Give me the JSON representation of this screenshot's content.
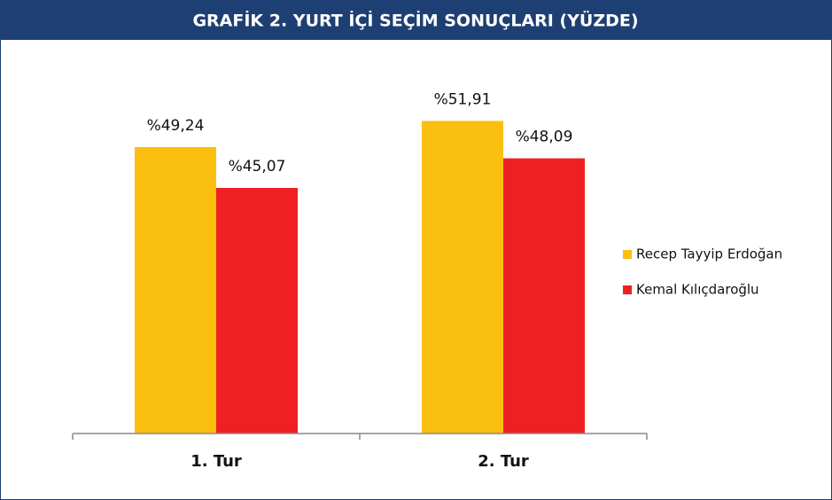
{
  "chart_data": {
    "type": "bar",
    "title": "GRAFİK 2. YURT İÇİ SEÇİM SONUÇLARI (YÜZDE)",
    "categories": [
      "1. Tur",
      "2. Tur"
    ],
    "series": [
      {
        "name": "Recep Tayyip Erdoğan",
        "color": "#fbbf10",
        "values": [
          49.24,
          51.91
        ],
        "value_labels": [
          "%49,24",
          "%51,91"
        ]
      },
      {
        "name": "Kemal Kılıçdaroğlu",
        "color": "#ee2024",
        "values": [
          45.07,
          48.09
        ],
        "value_labels": [
          "%45,07",
          "%48,09"
        ]
      }
    ],
    "ylim": [
      20,
      60
    ],
    "legend": "right"
  }
}
